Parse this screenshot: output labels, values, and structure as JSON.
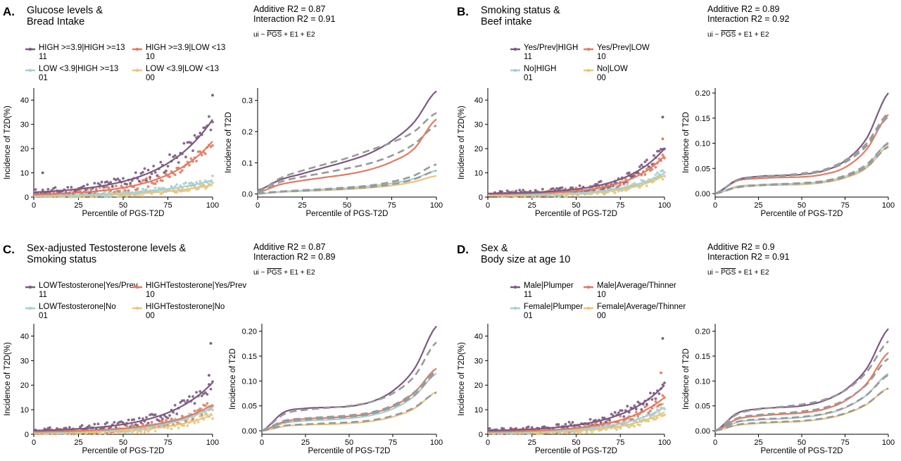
{
  "colors": {
    "c11": "#7B5A80",
    "c10": "#E07B62",
    "c01": "#A5D0D2",
    "c00": "#E8C57D",
    "dash": "#9A9A9A"
  },
  "chart_data": [
    {
      "panel": "A.",
      "title_lines": [
        "Glucose levels &",
        "Bread Intake"
      ],
      "additive": "Additive R2 = 0.87",
      "interaction": "Interaction R2 = 0.91",
      "formula": [
        "ui ~ ",
        "PGS",
        " + E1 + E2"
      ],
      "legend": [
        {
          "code": "11",
          "label": "HIGH >=3.9|HIGH >=13",
          "color": "c11"
        },
        {
          "code": "10",
          "label": "HIGH >=3.9|LOW <13",
          "color": "c10"
        },
        {
          "code": "01",
          "label": "LOW <3.9|HIGH >=13",
          "color": "c01"
        },
        {
          "code": "00",
          "label": "LOW <3.9|LOW <13",
          "color": "c00"
        }
      ],
      "scatter": {
        "type": "scatter",
        "xlabel": "Percentile of PGS-T2D",
        "ylabel": "Incidence of T2D(%)",
        "xlim": [
          0,
          100
        ],
        "ylim": [
          0,
          45
        ],
        "xticks": [
          0,
          25,
          50,
          75,
          100
        ],
        "yticks": [
          0,
          10,
          20,
          30,
          40
        ],
        "fits": [
          {
            "group": "11",
            "y0": 2,
            "y1": 32,
            "k": 3.5,
            "noise": 2.6,
            "seed": 11
          },
          {
            "group": "10",
            "y0": 1,
            "y1": 23,
            "k": 3.8,
            "noise": 1.8,
            "seed": 12
          },
          {
            "group": "01",
            "y0": 0.5,
            "y1": 7,
            "k": 3.2,
            "noise": 1.2,
            "seed": 13
          },
          {
            "group": "00",
            "y0": 0.3,
            "y1": 5,
            "k": 3.0,
            "noise": 1.0,
            "seed": 14
          }
        ],
        "outliers": [
          {
            "group": "11",
            "x": 100,
            "y": 42
          },
          {
            "group": "11",
            "x": 5,
            "y": 10
          }
        ]
      },
      "model": {
        "type": "line",
        "xlabel": "Percentile of PGS-T2D",
        "ylabel": "Incidence of T2D",
        "xlim": [
          0,
          100
        ],
        "ylim": [
          -0.01,
          0.34
        ],
        "xticks": [
          0,
          25,
          50,
          75,
          100
        ],
        "yticks": [
          0,
          0.1,
          0.2,
          0.3
        ],
        "ytick_labels": [
          "0.0",
          "0.1",
          "0.2",
          "0.3"
        ],
        "series": [
          {
            "group": "11",
            "y0": 0.012,
            "y1": 0.33,
            "ys": [
              0.012,
              0.045,
              0.065,
              0.085,
              0.105,
              0.13,
              0.17,
              0.23,
              0.33
            ]
          },
          {
            "group": "10",
            "y0": 0.005,
            "y1": 0.24,
            "ys": [
              0.005,
              0.03,
              0.043,
              0.053,
              0.063,
              0.078,
              0.103,
              0.145,
              0.24
            ]
          },
          {
            "group": "01",
            "y0": 0.0,
            "y1": 0.075,
            "ys": [
              0.0,
              0.007,
              0.011,
              0.015,
              0.019,
              0.025,
              0.034,
              0.049,
              0.075
            ]
          },
          {
            "group": "00",
            "y0": 0.0,
            "y1": 0.058,
            "ys": [
              0.0,
              0.006,
              0.009,
              0.012,
              0.015,
              0.02,
              0.027,
              0.039,
              0.058
            ]
          }
        ],
        "dashed": [
          {
            "ys": [
              0.008,
              0.05,
              0.075,
              0.095,
              0.115,
              0.14,
              0.165,
              0.2,
              0.26
            ]
          },
          {
            "ys": [
              0.004,
              0.038,
              0.055,
              0.068,
              0.082,
              0.098,
              0.123,
              0.16,
              0.22
            ]
          },
          {
            "ys": [
              0.002,
              0.008,
              0.012,
              0.016,
              0.021,
              0.027,
              0.039,
              0.059,
              0.095
            ]
          },
          {
            "ys": [
              0.002,
              0.007,
              0.01,
              0.013,
              0.017,
              0.022,
              0.031,
              0.047,
              0.075
            ]
          }
        ]
      }
    },
    {
      "panel": "B.",
      "title_lines": [
        "Smoking status &",
        "Beef intake"
      ],
      "additive": "Additive R2 = 0.89",
      "interaction": "Interaction R2 = 0.92",
      "formula": [
        "ui ~ ",
        "PGS",
        " + E1 + E2"
      ],
      "legend": [
        {
          "code": "11",
          "label": "Yes/Prev|HIGH",
          "color": "c11"
        },
        {
          "code": "10",
          "label": "Yes/Prev|LOW",
          "color": "c10"
        },
        {
          "code": "01",
          "label": "No|HIGH",
          "color": "c01"
        },
        {
          "code": "00",
          "label": "No|LOW",
          "color": "c00"
        }
      ],
      "scatter": {
        "type": "scatter",
        "xlabel": "Percentile of PGS-T2D",
        "ylabel": "Incidence of T2D(%)",
        "xlim": [
          0,
          100
        ],
        "ylim": [
          0,
          45
        ],
        "xticks": [
          0,
          25,
          50,
          75,
          100
        ],
        "yticks": [
          0,
          10,
          20,
          30,
          40
        ],
        "fits": [
          {
            "group": "11",
            "y0": 1.5,
            "y1": 20,
            "k": 4.5,
            "noise": 1.6,
            "seed": 21
          },
          {
            "group": "10",
            "y0": 1.2,
            "y1": 17,
            "k": 4.8,
            "noise": 1.4,
            "seed": 22
          },
          {
            "group": "01",
            "y0": 0.8,
            "y1": 10,
            "k": 4.6,
            "noise": 1.1,
            "seed": 23
          },
          {
            "group": "00",
            "y0": 0.6,
            "y1": 9,
            "k": 4.8,
            "noise": 1.0,
            "seed": 24
          }
        ],
        "outliers": [
          {
            "group": "11",
            "x": 99,
            "y": 33
          },
          {
            "group": "10",
            "x": 99,
            "y": 24
          }
        ]
      },
      "model": {
        "type": "line",
        "xlabel": "Percentile of PGS-T2D",
        "ylabel": "Incidence of T2D",
        "xlim": [
          0,
          100
        ],
        "ylim": [
          -0.007,
          0.21
        ],
        "xticks": [
          0,
          25,
          50,
          75,
          100
        ],
        "yticks": [
          0,
          0.05,
          0.1,
          0.15,
          0.2
        ],
        "ytick_labels": [
          "0.00",
          "0.05",
          "0.10",
          "0.15",
          "0.20"
        ],
        "series": [
          {
            "group": "11",
            "ys": [
              0.0,
              0.027,
              0.034,
              0.036,
              0.038,
              0.045,
              0.065,
              0.11,
              0.2
            ]
          },
          {
            "group": "10",
            "ys": [
              0.0,
              0.025,
              0.03,
              0.032,
              0.033,
              0.038,
              0.052,
              0.088,
              0.157
            ]
          },
          {
            "group": "01",
            "ys": [
              0.0,
              0.014,
              0.017,
              0.019,
              0.02,
              0.024,
              0.034,
              0.055,
              0.102
            ]
          },
          {
            "group": "00",
            "ys": [
              0.0,
              0.012,
              0.016,
              0.017,
              0.018,
              0.022,
              0.031,
              0.051,
              0.095
            ]
          }
        ],
        "dashed": [
          {
            "ys": [
              0.0,
              0.026,
              0.033,
              0.036,
              0.04,
              0.047,
              0.066,
              0.1,
              0.16
            ]
          },
          {
            "ys": [
              0.0,
              0.026,
              0.032,
              0.035,
              0.038,
              0.045,
              0.062,
              0.095,
              0.153
            ]
          },
          {
            "ys": [
              0.0,
              0.013,
              0.017,
              0.019,
              0.021,
              0.025,
              0.036,
              0.058,
              0.1
            ]
          },
          {
            "ys": [
              0.0,
              0.012,
              0.016,
              0.018,
              0.02,
              0.023,
              0.033,
              0.053,
              0.093
            ]
          }
        ]
      }
    },
    {
      "panel": "C.",
      "title_lines": [
        "Sex-adjusted Testosterone levels &",
        "Smoking status"
      ],
      "additive": "Additive R2 = 0.87",
      "interaction": "Interaction R2 = 0.89",
      "formula": [
        "ui ~ ",
        "PGS",
        " + E1 + E2"
      ],
      "legend": [
        {
          "code": "11",
          "label": "LOWTestosterone|Yes/Prev",
          "color": "c11"
        },
        {
          "code": "10",
          "label": "HIGHTestosterone|Yes/Prev",
          "color": "c10"
        },
        {
          "code": "01",
          "label": "LOWTestosterone|No",
          "color": "c01"
        },
        {
          "code": "00",
          "label": "HIGHTestosterone|No",
          "color": "c00"
        }
      ],
      "scatter": {
        "type": "scatter",
        "xlabel": "Percentile of PGS-T2D",
        "ylabel": "Incidence of T2D(%)",
        "xlim": [
          0,
          100
        ],
        "ylim": [
          0,
          45
        ],
        "xticks": [
          0,
          25,
          50,
          75,
          100
        ],
        "yticks": [
          0,
          10,
          20,
          30,
          40
        ],
        "fits": [
          {
            "group": "11",
            "y0": 1.5,
            "y1": 21,
            "k": 3.8,
            "noise": 1.8,
            "seed": 31
          },
          {
            "group": "10",
            "y0": 1.0,
            "y1": 12,
            "k": 3.9,
            "noise": 1.4,
            "seed": 32
          },
          {
            "group": "01",
            "y0": 0.8,
            "y1": 11,
            "k": 4.0,
            "noise": 1.2,
            "seed": 33
          },
          {
            "group": "00",
            "y0": 0.5,
            "y1": 8,
            "k": 4.0,
            "noise": 1.1,
            "seed": 34
          }
        ],
        "outliers": [
          {
            "group": "11",
            "x": 99,
            "y": 37
          },
          {
            "group": "11",
            "x": 98,
            "y": 24
          }
        ]
      },
      "model": {
        "type": "line",
        "xlabel": "Percentile of PGS-T2D",
        "ylabel": "Incidence of T2D",
        "xlim": [
          0,
          100
        ],
        "ylim": [
          -0.007,
          0.215
        ],
        "xticks": [
          0,
          25,
          50,
          75,
          100
        ],
        "yticks": [
          0,
          0.05,
          0.1,
          0.15,
          0.2
        ],
        "ytick_labels": [
          "0.00",
          "0.05",
          "0.10",
          "0.15",
          "0.20"
        ],
        "series": [
          {
            "group": "11",
            "ys": [
              0.0,
              0.037,
              0.045,
              0.047,
              0.049,
              0.058,
              0.08,
              0.125,
              0.21
            ]
          },
          {
            "group": "10",
            "ys": [
              0.0,
              0.018,
              0.024,
              0.026,
              0.029,
              0.035,
              0.049,
              0.077,
              0.125
            ]
          },
          {
            "group": "01",
            "ys": [
              0.0,
              0.015,
              0.02,
              0.022,
              0.025,
              0.031,
              0.044,
              0.07,
              0.115
            ]
          },
          {
            "group": "00",
            "ys": [
              0.0,
              0.009,
              0.012,
              0.013,
              0.015,
              0.019,
              0.028,
              0.045,
              0.078
            ]
          }
        ],
        "dashed": [
          {
            "ys": [
              0.0,
              0.033,
              0.042,
              0.046,
              0.05,
              0.058,
              0.075,
              0.11,
              0.178
            ]
          },
          {
            "ys": [
              0.0,
              0.02,
              0.025,
              0.028,
              0.031,
              0.037,
              0.051,
              0.078,
              0.12
            ]
          },
          {
            "ys": [
              0.0,
              0.017,
              0.022,
              0.025,
              0.028,
              0.034,
              0.048,
              0.072,
              0.117
            ]
          },
          {
            "ys": [
              0.0,
              0.01,
              0.013,
              0.015,
              0.017,
              0.021,
              0.03,
              0.047,
              0.077
            ]
          }
        ]
      }
    },
    {
      "panel": "D.",
      "title_lines": [
        "Sex &",
        "Body size at age 10"
      ],
      "additive": "Additive R2 = 0.9",
      "interaction": "Interaction R2 = 0.91",
      "formula": [
        "ui ~ ",
        "PGS",
        " + E1 + E2"
      ],
      "legend": [
        {
          "code": "11",
          "label": "Male|Plumper",
          "color": "c11"
        },
        {
          "code": "10",
          "label": "Male|Average/Thinner",
          "color": "c10"
        },
        {
          "code": "01",
          "label": "Female|Plumper",
          "color": "c01"
        },
        {
          "code": "00",
          "label": "Female|Average/Thinner",
          "color": "c00"
        }
      ],
      "scatter": {
        "type": "scatter",
        "xlabel": "Percentile of PGS-T2D",
        "ylabel": "Incidence of T2D(%)",
        "xlim": [
          0,
          100
        ],
        "ylim": [
          0,
          45
        ],
        "xticks": [
          0,
          25,
          50,
          75,
          100
        ],
        "yticks": [
          0,
          10,
          20,
          30,
          40
        ],
        "fits": [
          {
            "group": "11",
            "y0": 1.5,
            "y1": 20,
            "k": 4.0,
            "noise": 1.7,
            "seed": 41
          },
          {
            "group": "10",
            "y0": 1.0,
            "y1": 15,
            "k": 4.2,
            "noise": 1.4,
            "seed": 42
          },
          {
            "group": "01",
            "y0": 0.8,
            "y1": 11,
            "k": 4.2,
            "noise": 1.2,
            "seed": 43
          },
          {
            "group": "00",
            "y0": 0.5,
            "y1": 9,
            "k": 4.3,
            "noise": 1.0,
            "seed": 44
          }
        ],
        "outliers": [
          {
            "group": "11",
            "x": 99,
            "y": 39
          },
          {
            "group": "10",
            "x": 98,
            "y": 25
          }
        ]
      },
      "model": {
        "type": "line",
        "xlabel": "Percentile of PGS-T2D",
        "ylabel": "Incidence of T2D",
        "xlim": [
          0,
          100
        ],
        "ylim": [
          -0.007,
          0.215
        ],
        "xticks": [
          0,
          25,
          50,
          75,
          100
        ],
        "yticks": [
          0,
          0.05,
          0.1,
          0.15,
          0.2
        ],
        "ytick_labels": [
          "0.00",
          "0.05",
          "0.10",
          "0.15",
          "0.20"
        ],
        "series": [
          {
            "group": "11",
            "ys": [
              0.0,
              0.035,
              0.044,
              0.047,
              0.05,
              0.06,
              0.082,
              0.125,
              0.205
            ]
          },
          {
            "group": "10",
            "ys": [
              0.0,
              0.023,
              0.03,
              0.033,
              0.036,
              0.043,
              0.06,
              0.095,
              0.157
            ]
          },
          {
            "group": "01",
            "ys": [
              0.0,
              0.017,
              0.022,
              0.024,
              0.027,
              0.033,
              0.046,
              0.072,
              0.115
            ]
          },
          {
            "group": "00",
            "ys": [
              0.0,
              0.011,
              0.015,
              0.017,
              0.019,
              0.024,
              0.034,
              0.053,
              0.086
            ]
          }
        ],
        "dashed": [
          {
            "ys": [
              0.0,
              0.033,
              0.043,
              0.048,
              0.053,
              0.062,
              0.081,
              0.118,
              0.18
            ]
          },
          {
            "ys": [
              0.0,
              0.025,
              0.032,
              0.035,
              0.039,
              0.046,
              0.062,
              0.093,
              0.145
            ]
          },
          {
            "ys": [
              0.0,
              0.018,
              0.023,
              0.025,
              0.028,
              0.034,
              0.047,
              0.072,
              0.112
            ]
          },
          {
            "ys": [
              0.0,
              0.012,
              0.016,
              0.018,
              0.02,
              0.025,
              0.035,
              0.054,
              0.085
            ]
          }
        ]
      }
    }
  ]
}
